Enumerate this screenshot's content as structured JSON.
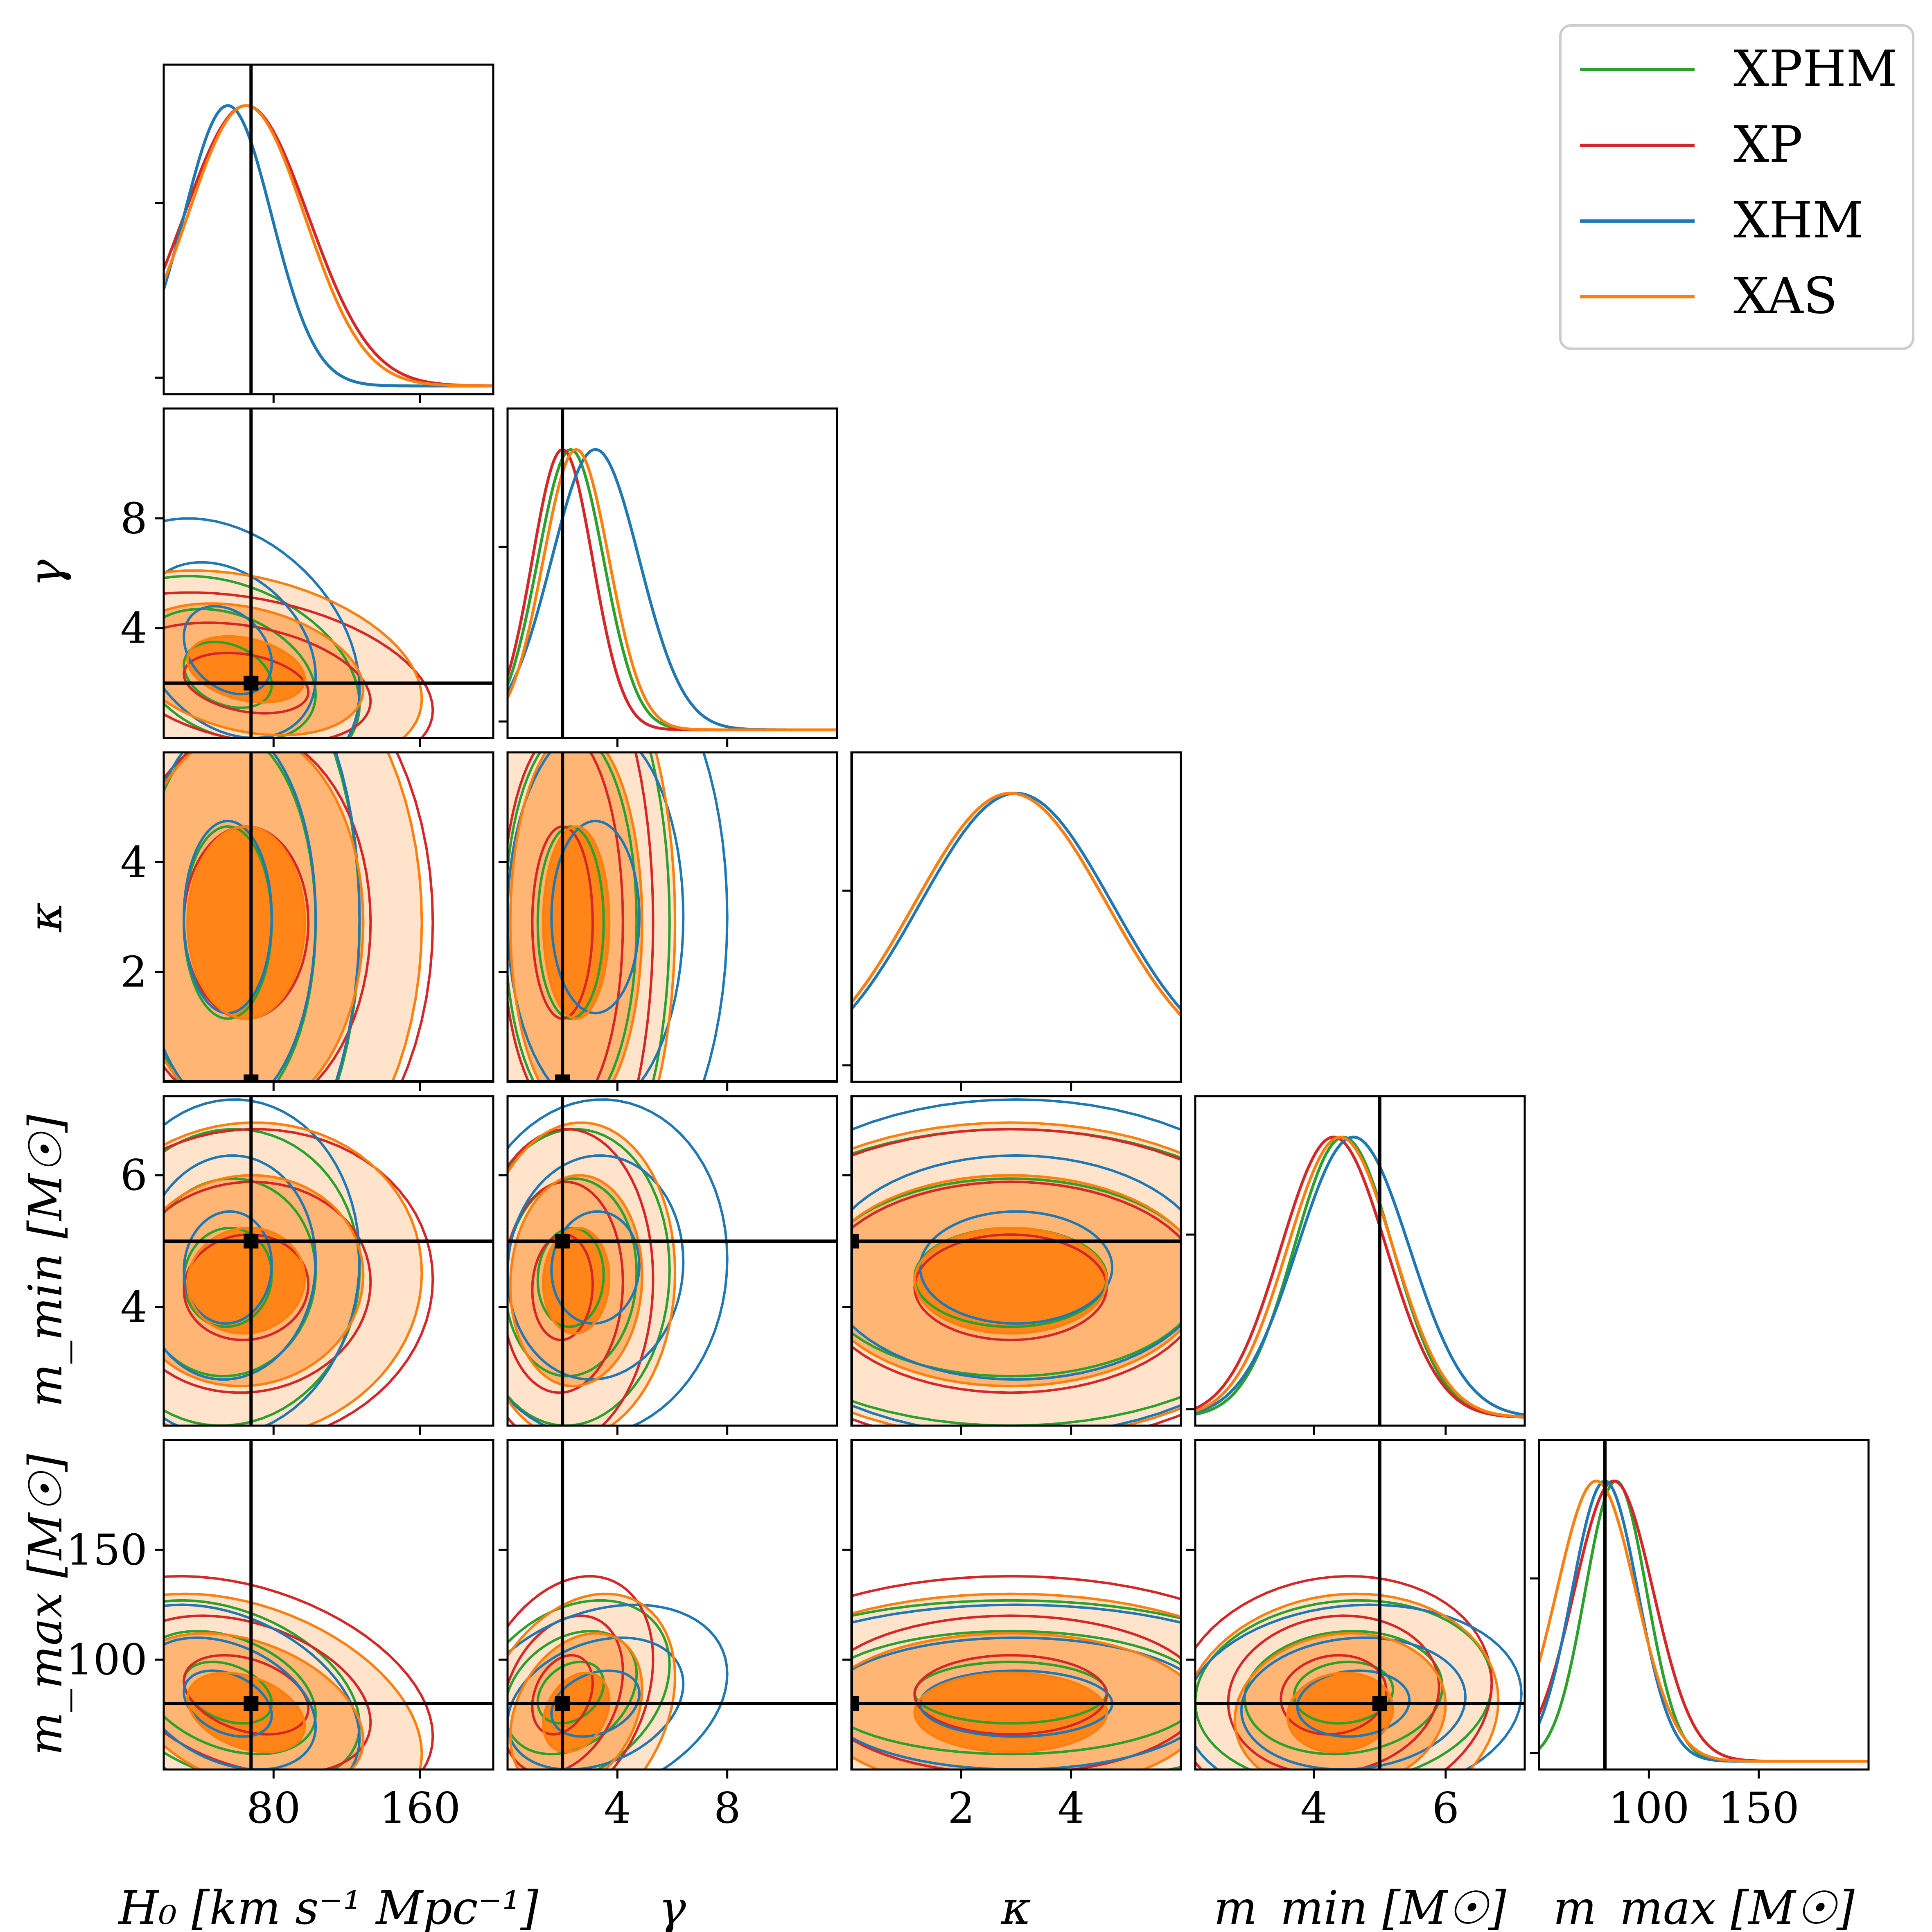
{
  "chart_data": {
    "type": "corner",
    "title": "",
    "parameters": [
      {
        "key": "H0",
        "label": "H₀ [km s⁻¹ Mpc⁻¹]",
        "short": "H₀",
        "range": [
          20,
          200
        ],
        "ticks": [
          80,
          160
        ],
        "truth": 67.7
      },
      {
        "key": "gamma",
        "label": "γ",
        "short": "γ",
        "range": [
          0,
          12
        ],
        "ticks": [
          4,
          8
        ],
        "truth": 2.0
      },
      {
        "key": "kappa",
        "label": "κ",
        "short": "κ",
        "range": [
          0,
          6
        ],
        "ticks": [
          2,
          4
        ],
        "truth": 0.0
      },
      {
        "key": "mmin",
        "label": "m_min [M☉]",
        "short": "m_min [M☉]",
        "range": [
          2.2,
          7.2
        ],
        "ticks": [
          4,
          6
        ],
        "truth": 5.0
      },
      {
        "key": "mmax",
        "label": "m_max [M☉]",
        "short": "m_max [M☉]",
        "range": [
          50,
          200
        ],
        "ticks": [
          100,
          150
        ],
        "truth": 80.0
      }
    ],
    "legend": {
      "position": "top-right",
      "entries": [
        {
          "name": "XPHM",
          "color": "#2ca02c"
        },
        {
          "name": "XP",
          "color": "#d62728"
        },
        {
          "name": "XHM",
          "color": "#1f77b4"
        },
        {
          "name": "XAS",
          "color": "#ff7f0e"
        }
      ]
    },
    "series": [
      {
        "name": "XPHM",
        "color": "#2ca02c",
        "mean": [
          55,
          2.3,
          2.9,
          4.45,
          85
        ],
        "sigma": [
          24,
          1.2,
          1.75,
          0.75,
          14
        ],
        "corr": {
          "H0-gamma": -0.3,
          "H0-mmin": 0.05,
          "H0-mmax": -0.35,
          "gamma-mmin": 0.05,
          "gamma-mmax": 0.3,
          "mmin-mmax": 0.1
        }
      },
      {
        "name": "XP",
        "color": "#d62728",
        "mean": [
          65,
          2.0,
          2.9,
          4.3,
          84
        ],
        "sigma": [
          34,
          1.1,
          1.75,
          0.8,
          18
        ],
        "corr": {
          "H0-gamma": -0.3,
          "H0-mmin": 0.05,
          "H0-mmax": -0.35,
          "gamma-mmin": 0.05,
          "gamma-mmax": 0.3,
          "mmin-mmax": 0.1
        }
      },
      {
        "name": "XHM",
        "color": "#1f77b4",
        "mean": [
          55,
          3.2,
          3.0,
          4.6,
          80
        ],
        "sigma": [
          24,
          1.6,
          1.75,
          0.85,
          15
        ],
        "corr": {
          "H0-gamma": -0.3,
          "H0-mmin": 0.05,
          "H0-mmax": -0.35,
          "gamma-mmin": 0.05,
          "gamma-mmax": 0.3,
          "mmin-mmax": 0.1
        }
      },
      {
        "name": "XAS",
        "color": "#ff7f0e",
        "mean": [
          65,
          2.5,
          2.9,
          4.4,
          76
        ],
        "sigma": [
          32,
          1.2,
          1.75,
          0.8,
          18
        ],
        "corr": {
          "H0-gamma": -0.3,
          "H0-mmin": 0.05,
          "H0-mmax": -0.35,
          "gamma-mmin": 0.05,
          "gamma-mmax": 0.3,
          "mmin-mmax": 0.1
        }
      }
    ],
    "filled_series": "XAS",
    "contour_levels": [
      1,
      2,
      3
    ],
    "grid": false
  }
}
